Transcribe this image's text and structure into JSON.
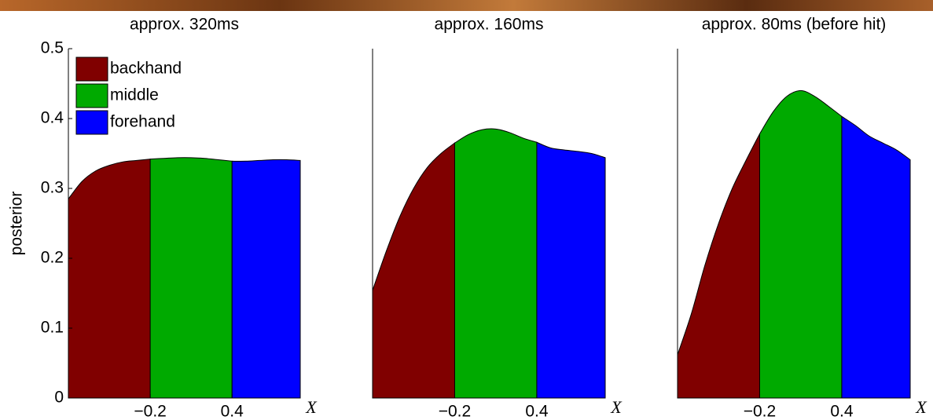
{
  "chart_data": [
    {
      "type": "area",
      "title": "approx. 320ms",
      "y_label": "posterior",
      "x_label": "X",
      "xlim": [
        -0.8,
        0.9
      ],
      "xticks": [
        {
          "value": -0.2,
          "label": "−0.2"
        },
        0.4
      ],
      "ylim": [
        0,
        0.5
      ],
      "yticks": [
        0,
        0.1,
        0.2,
        0.3,
        0.4,
        0.5
      ],
      "legend": "upper left",
      "series": [
        {
          "name": "backhand",
          "color": "#800000",
          "x": [
            -0.8,
            -0.7,
            -0.6,
            -0.5,
            -0.4,
            -0.3,
            -0.2
          ],
          "values": [
            0.285,
            0.31,
            0.325,
            0.333,
            0.338,
            0.34,
            0.342
          ]
        },
        {
          "name": "middle",
          "color": "#00aa00",
          "x": [
            -0.2,
            -0.1,
            0,
            0.1,
            0.2,
            0.3,
            0.4
          ],
          "values": [
            0.342,
            0.343,
            0.344,
            0.344,
            0.343,
            0.341,
            0.339
          ]
        },
        {
          "name": "forehand",
          "color": "#0000ff",
          "x": [
            0.4,
            0.5,
            0.6,
            0.7,
            0.8,
            0.9
          ],
          "values": [
            0.339,
            0.339,
            0.34,
            0.341,
            0.341,
            0.34
          ]
        }
      ]
    },
    {
      "type": "area",
      "title": "approx. 160ms",
      "x_label": "X",
      "xlim": [
        -0.8,
        0.9
      ],
      "xticks": [
        {
          "value": -0.2,
          "label": "−0.2"
        },
        0.4
      ],
      "ylim": [
        0,
        0.5
      ],
      "series": [
        {
          "color": "#800000",
          "x": [
            -0.8,
            -0.7,
            -0.6,
            -0.5,
            -0.4,
            -0.3,
            -0.2
          ],
          "values": [
            0.154,
            0.21,
            0.26,
            0.3,
            0.33,
            0.35,
            0.365
          ]
        },
        {
          "color": "#00aa00",
          "x": [
            -0.2,
            -0.1,
            0,
            0.1,
            0.2,
            0.3,
            0.4
          ],
          "values": [
            0.365,
            0.377,
            0.384,
            0.385,
            0.38,
            0.372,
            0.366
          ]
        },
        {
          "color": "#0000ff",
          "x": [
            0.4,
            0.5,
            0.6,
            0.7,
            0.8,
            0.9
          ],
          "values": [
            0.366,
            0.358,
            0.355,
            0.353,
            0.35,
            0.344
          ]
        }
      ]
    },
    {
      "type": "area",
      "title": "approx. 80ms (before hit)",
      "x_label": "X",
      "xlim": [
        -0.8,
        0.9
      ],
      "xticks": [
        {
          "value": -0.2,
          "label": "−0.2"
        },
        0.4
      ],
      "ylim": [
        0,
        0.5
      ],
      "series": [
        {
          "color": "#800000",
          "x": [
            -0.8,
            -0.7,
            -0.6,
            -0.5,
            -0.4,
            -0.3,
            -0.2
          ],
          "values": [
            0.062,
            0.12,
            0.19,
            0.25,
            0.3,
            0.34,
            0.378
          ]
        },
        {
          "color": "#00aa00",
          "x": [
            -0.2,
            -0.1,
            0,
            0.1,
            0.2,
            0.3,
            0.4
          ],
          "values": [
            0.378,
            0.41,
            0.432,
            0.44,
            0.432,
            0.418,
            0.403
          ]
        },
        {
          "color": "#0000ff",
          "x": [
            0.4,
            0.5,
            0.6,
            0.7,
            0.8,
            0.9
          ],
          "values": [
            0.403,
            0.39,
            0.375,
            0.365,
            0.355,
            0.341
          ]
        }
      ]
    }
  ]
}
